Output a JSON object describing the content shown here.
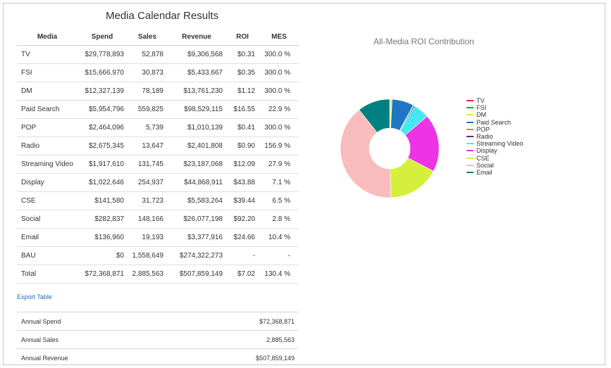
{
  "page": {
    "title": "Media Calendar Results"
  },
  "table": {
    "headers": {
      "media": "Media",
      "spend": "Spend",
      "sales": "Sales",
      "revenue": "Revenue",
      "roi": "ROI",
      "mes": "MES"
    },
    "rows": [
      {
        "media": "TV",
        "spend": "$29,778,893",
        "sales": "52,878",
        "revenue": "$9,306,568",
        "roi": "$0.31",
        "mes": "300.0 %"
      },
      {
        "media": "FSI",
        "spend": "$15,666,970",
        "sales": "30,873",
        "revenue": "$5,433,667",
        "roi": "$0.35",
        "mes": "300.0 %"
      },
      {
        "media": "DM",
        "spend": "$12,327,139",
        "sales": "78,189",
        "revenue": "$13,761,230",
        "roi": "$1.12",
        "mes": "300.0 %"
      },
      {
        "media": "Paid Search",
        "spend": "$5,954,796",
        "sales": "559,825",
        "revenue": "$98,529,115",
        "roi": "$16.55",
        "mes": "22.9 %"
      },
      {
        "media": "POP",
        "spend": "$2,464,096",
        "sales": "5,739",
        "revenue": "$1,010,139",
        "roi": "$0.41",
        "mes": "300.0 %"
      },
      {
        "media": "Radio",
        "spend": "$2,675,345",
        "sales": "13,647",
        "revenue": "$2,401,808",
        "roi": "$0.90",
        "mes": "156.9 %"
      },
      {
        "media": "Streaming Video",
        "spend": "$1,917,610",
        "sales": "131,745",
        "revenue": "$23,187,068",
        "roi": "$12.09",
        "mes": "27.9 %"
      },
      {
        "media": "Display",
        "spend": "$1,022,646",
        "sales": "254,937",
        "revenue": "$44,868,911",
        "roi": "$43.88",
        "mes": "7.1 %"
      },
      {
        "media": "CSE",
        "spend": "$141,580",
        "sales": "31,723",
        "revenue": "$5,583,264",
        "roi": "$39.44",
        "mes": "6.5 %"
      },
      {
        "media": "Social",
        "spend": "$282,837",
        "sales": "148,166",
        "revenue": "$26,077,198",
        "roi": "$92.20",
        "mes": "2.8 %"
      },
      {
        "media": "Email",
        "spend": "$136,960",
        "sales": "19,193",
        "revenue": "$3,377,916",
        "roi": "$24.66",
        "mes": "10.4 %"
      },
      {
        "media": "BAU",
        "spend": "$0",
        "sales": "1,558,649",
        "revenue": "$274,322,273",
        "roi": "-",
        "mes": "-"
      },
      {
        "media": "Total",
        "spend": "$72,368,871",
        "sales": "2,885,563",
        "revenue": "$507,859,149",
        "roi": "$7.02",
        "mes": "130.4 %"
      }
    ]
  },
  "export": {
    "label": "Export Table"
  },
  "summary": [
    {
      "label": "Annual Spend",
      "value": "$72,368,871"
    },
    {
      "label": "Annual Sales",
      "value": "2,885,563"
    },
    {
      "label": "Annual Revenue",
      "value": "$507,859,149"
    }
  ],
  "chart": {
    "title": "All-Media ROI Contribution",
    "legend": [
      {
        "name": "TV",
        "color": "#e8203c"
      },
      {
        "name": "FSI",
        "color": "#2ca02c"
      },
      {
        "name": "DM",
        "color": "#e8e830"
      },
      {
        "name": "Paid Search",
        "color": "#1f77c4"
      },
      {
        "name": "POP",
        "color": "#f58231"
      },
      {
        "name": "Radio",
        "color": "#5a2d8c"
      },
      {
        "name": "Streaming Video",
        "color": "#46e8f0"
      },
      {
        "name": "Display",
        "color": "#ee32e6"
      },
      {
        "name": "CSE",
        "color": "#d4f03c"
      },
      {
        "name": "Social",
        "color": "#f9bcbc"
      },
      {
        "name": "Email",
        "color": "#008080"
      }
    ]
  },
  "chart_data": {
    "type": "pie",
    "title": "All-Media ROI Contribution",
    "donut": true,
    "legend_position": "right",
    "categories": [
      "TV",
      "FSI",
      "DM",
      "Paid Search",
      "POP",
      "Radio",
      "Streaming Video",
      "Display",
      "CSE",
      "Social",
      "Email"
    ],
    "values": [
      0.13,
      0.15,
      0.48,
      6.83,
      0.17,
      0.37,
      4.99,
      18.11,
      16.28,
      38.05,
      10.18
    ],
    "colors": [
      "#e8203c",
      "#2ca02c",
      "#e8e830",
      "#1f77c4",
      "#f58231",
      "#5a2d8c",
      "#46e8f0",
      "#ee32e6",
      "#d4f03c",
      "#f9bcbc",
      "#008080"
    ]
  }
}
